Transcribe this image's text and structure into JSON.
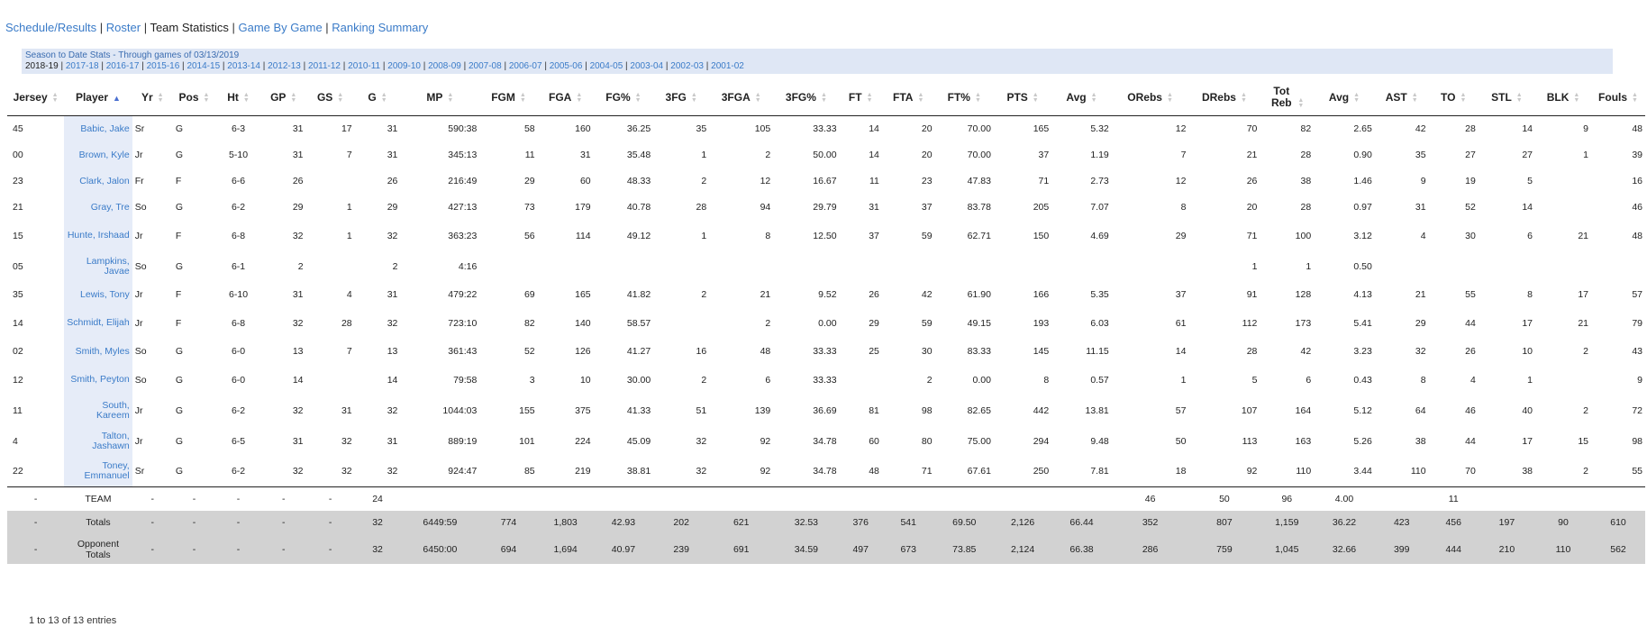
{
  "nav": {
    "items": [
      {
        "label": "Schedule/Results",
        "current": false
      },
      {
        "label": "Roster",
        "current": false
      },
      {
        "label": "Team Statistics",
        "current": true
      },
      {
        "label": "Game By Game",
        "current": false
      },
      {
        "label": "Ranking Summary",
        "current": false
      }
    ]
  },
  "season_box": {
    "caption": "Season to Date Stats - Through games of 03/13/2019",
    "seasons": [
      "2018-19",
      "2017-18",
      "2016-17",
      "2015-16",
      "2014-15",
      "2013-14",
      "2012-13",
      "2011-12",
      "2010-11",
      "2009-10",
      "2008-09",
      "2007-08",
      "2006-07",
      "2005-06",
      "2004-05",
      "2003-04",
      "2002-03",
      "2001-02"
    ],
    "current": "2018-19"
  },
  "table": {
    "headers": [
      "Jersey",
      "Player",
      "Yr",
      "Pos",
      "Ht",
      "GP",
      "GS",
      "G",
      "MP",
      "FGM",
      "FGA",
      "FG%",
      "3FG",
      "3FGA",
      "3FG%",
      "FT",
      "FTA",
      "FT%",
      "PTS",
      "Avg",
      "ORebs",
      "DRebs",
      "Tot Reb",
      "Avg",
      "AST",
      "TO",
      "STL",
      "BLK",
      "Fouls"
    ],
    "sort_column": "Player",
    "rows": [
      [
        "45",
        "Babic, Jake",
        "Sr",
        "G",
        "6-3",
        "31",
        "17",
        "31",
        "590:38",
        "58",
        "160",
        "36.25",
        "35",
        "105",
        "33.33",
        "14",
        "20",
        "70.00",
        "165",
        "5.32",
        "12",
        "70",
        "82",
        "2.65",
        "42",
        "28",
        "14",
        "9",
        "48"
      ],
      [
        "00",
        "Brown, Kyle",
        "Jr",
        "G",
        "5-10",
        "31",
        "7",
        "31",
        "345:13",
        "11",
        "31",
        "35.48",
        "1",
        "2",
        "50.00",
        "14",
        "20",
        "70.00",
        "37",
        "1.19",
        "7",
        "21",
        "28",
        "0.90",
        "35",
        "27",
        "27",
        "1",
        "39"
      ],
      [
        "23",
        "Clark, Jalon",
        "Fr",
        "F",
        "6-6",
        "26",
        "",
        "26",
        "216:49",
        "29",
        "60",
        "48.33",
        "2",
        "12",
        "16.67",
        "11",
        "23",
        "47.83",
        "71",
        "2.73",
        "12",
        "26",
        "38",
        "1.46",
        "9",
        "19",
        "5",
        "",
        "16"
      ],
      [
        "21",
        "Gray, Tre",
        "So",
        "G",
        "6-2",
        "29",
        "1",
        "29",
        "427:13",
        "73",
        "179",
        "40.78",
        "28",
        "94",
        "29.79",
        "31",
        "37",
        "83.78",
        "205",
        "7.07",
        "8",
        "20",
        "28",
        "0.97",
        "31",
        "52",
        "14",
        "",
        "46"
      ],
      [
        "15",
        "Hunte, Irshaad",
        "Jr",
        "F",
        "6-8",
        "32",
        "1",
        "32",
        "363:23",
        "56",
        "114",
        "49.12",
        "1",
        "8",
        "12.50",
        "37",
        "59",
        "62.71",
        "150",
        "4.69",
        "29",
        "71",
        "100",
        "3.12",
        "4",
        "30",
        "6",
        "21",
        "48"
      ],
      [
        "05",
        "Lampkins, Javae",
        "So",
        "G",
        "6-1",
        "2",
        "",
        "2",
        "4:16",
        "",
        "",
        "",
        "",
        "",
        "",
        "",
        "",
        "",
        "",
        "",
        "",
        "1",
        "1",
        "0.50",
        "",
        "",
        "",
        "",
        ""
      ],
      [
        "35",
        "Lewis, Tony",
        "Jr",
        "F",
        "6-10",
        "31",
        "4",
        "31",
        "479:22",
        "69",
        "165",
        "41.82",
        "2",
        "21",
        "9.52",
        "26",
        "42",
        "61.90",
        "166",
        "5.35",
        "37",
        "91",
        "128",
        "4.13",
        "21",
        "55",
        "8",
        "17",
        "57"
      ],
      [
        "14",
        "Schmidt, Elijah",
        "Jr",
        "F",
        "6-8",
        "32",
        "28",
        "32",
        "723:10",
        "82",
        "140",
        "58.57",
        "",
        "2",
        "0.00",
        "29",
        "59",
        "49.15",
        "193",
        "6.03",
        "61",
        "112",
        "173",
        "5.41",
        "29",
        "44",
        "17",
        "21",
        "79"
      ],
      [
        "02",
        "Smith, Myles",
        "So",
        "G",
        "6-0",
        "13",
        "7",
        "13",
        "361:43",
        "52",
        "126",
        "41.27",
        "16",
        "48",
        "33.33",
        "25",
        "30",
        "83.33",
        "145",
        "11.15",
        "14",
        "28",
        "42",
        "3.23",
        "32",
        "26",
        "10",
        "2",
        "43"
      ],
      [
        "12",
        "Smith, Peyton",
        "So",
        "G",
        "6-0",
        "14",
        "",
        "14",
        "79:58",
        "3",
        "10",
        "30.00",
        "2",
        "6",
        "33.33",
        "",
        "2",
        "0.00",
        "8",
        "0.57",
        "1",
        "5",
        "6",
        "0.43",
        "8",
        "4",
        "1",
        "",
        "9"
      ],
      [
        "11",
        "South, Kareem",
        "Jr",
        "G",
        "6-2",
        "32",
        "31",
        "32",
        "1044:03",
        "155",
        "375",
        "41.33",
        "51",
        "139",
        "36.69",
        "81",
        "98",
        "82.65",
        "442",
        "13.81",
        "57",
        "107",
        "164",
        "5.12",
        "64",
        "46",
        "40",
        "2",
        "72"
      ],
      [
        "4",
        "Talton, Jashawn",
        "Jr",
        "G",
        "6-5",
        "31",
        "32",
        "31",
        "889:19",
        "101",
        "224",
        "45.09",
        "32",
        "92",
        "34.78",
        "60",
        "80",
        "75.00",
        "294",
        "9.48",
        "50",
        "113",
        "163",
        "5.26",
        "38",
        "44",
        "17",
        "15",
        "98"
      ],
      [
        "22",
        "Toney, Emmanuel",
        "Sr",
        "G",
        "6-2",
        "32",
        "32",
        "32",
        "924:47",
        "85",
        "219",
        "38.81",
        "32",
        "92",
        "34.78",
        "48",
        "71",
        "67.61",
        "250",
        "7.81",
        "18",
        "92",
        "110",
        "3.44",
        "110",
        "70",
        "38",
        "2",
        "55"
      ]
    ],
    "team_row": [
      "-",
      "TEAM",
      "-",
      "-",
      "-",
      "-",
      "-",
      "24",
      "",
      "",
      "",
      "",
      "",
      "",
      "",
      "",
      "",
      "",
      "",
      "",
      "46",
      "50",
      "96",
      "4.00",
      "",
      "11",
      "",
      "",
      ""
    ],
    "totals_row": [
      "-",
      "Totals",
      "-",
      "-",
      "-",
      "-",
      "-",
      "32",
      "6449:59",
      "774",
      "1,803",
      "42.93",
      "202",
      "621",
      "32.53",
      "376",
      "541",
      "69.50",
      "2,126",
      "66.44",
      "352",
      "807",
      "1,159",
      "36.22",
      "423",
      "456",
      "197",
      "90",
      "610"
    ],
    "opponent_row": [
      "-",
      "Opponent Totals",
      "-",
      "-",
      "-",
      "-",
      "-",
      "32",
      "6450:00",
      "694",
      "1,694",
      "40.97",
      "239",
      "691",
      "34.59",
      "497",
      "673",
      "73.85",
      "2,124",
      "66.38",
      "286",
      "759",
      "1,045",
      "32.66",
      "399",
      "444",
      "210",
      "110",
      "562"
    ]
  },
  "footer": {
    "entries_text": "1 to 13 of 13 entries"
  }
}
